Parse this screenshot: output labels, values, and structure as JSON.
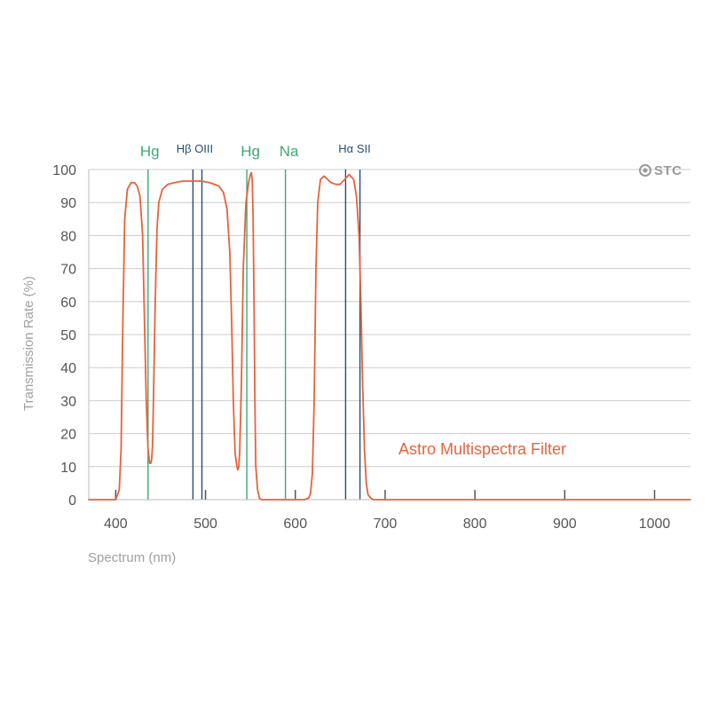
{
  "chart_data": {
    "type": "line",
    "title": "",
    "xlabel": "Spectrum (nm)",
    "ylabel": "Transmission Rate (%)",
    "xlim": [
      370,
      1040
    ],
    "ylim": [
      0,
      100
    ],
    "x_ticks": [
      400,
      500,
      600,
      700,
      800,
      900,
      1000
    ],
    "y_ticks": [
      0,
      10,
      20,
      30,
      40,
      50,
      60,
      70,
      80,
      90,
      100
    ],
    "grid": true,
    "series": [
      {
        "name": "Astro Multispectra Filter",
        "color": "#e8623c",
        "x": [
          370,
          400,
          404,
          406,
          408,
          410,
          413,
          417,
          421,
          424,
          427,
          430,
          432,
          434,
          436,
          438,
          439,
          440,
          441,
          442,
          444,
          446,
          448,
          452,
          458,
          465,
          475,
          485,
          495,
          505,
          515,
          520,
          524,
          527,
          529,
          531,
          533,
          535,
          536,
          537,
          538,
          540,
          542,
          545,
          548,
          550,
          551,
          552,
          553,
          554,
          555,
          556,
          558,
          560,
          562,
          564,
          567,
          575,
          585,
          600,
          610,
          615,
          617,
          619,
          621,
          623,
          625,
          628,
          632,
          636,
          640,
          645,
          650,
          655,
          660,
          665,
          668,
          671,
          673,
          675,
          677,
          679,
          681,
          684,
          687,
          690,
          700,
          750,
          800,
          900,
          1040
        ],
        "values": [
          0,
          0,
          3,
          15,
          55,
          85,
          94,
          96,
          96,
          95,
          92,
          80,
          55,
          30,
          15,
          11,
          11,
          12,
          16,
          30,
          60,
          82,
          90,
          94,
          95.5,
          96,
          96.5,
          96.5,
          96.5,
          96,
          95,
          93,
          88,
          75,
          55,
          30,
          14,
          10,
          9,
          10,
          14,
          35,
          70,
          90,
          96,
          98.5,
          99,
          97,
          85,
          60,
          30,
          10,
          3,
          0.5,
          0,
          0,
          0,
          0,
          0,
          0,
          0,
          0.5,
          2,
          8,
          30,
          70,
          90,
          97,
          98,
          97,
          96,
          95.5,
          95.5,
          97,
          98.5,
          97,
          92,
          80,
          60,
          35,
          15,
          5,
          1.5,
          0.5,
          0,
          0,
          0,
          0,
          0,
          0,
          0
        ]
      }
    ],
    "emission_lines": [
      {
        "label": "Hg",
        "wavelength": 436,
        "color": "#3aaa74"
      },
      {
        "label": "Hβ",
        "wavelength": 486,
        "color": "#254f75"
      },
      {
        "label": "OIII",
        "wavelength": 496,
        "color": "#254f75"
      },
      {
        "label": "Hg",
        "wavelength": 546,
        "color": "#3aaa74"
      },
      {
        "label": "Na",
        "wavelength": 589,
        "color": "#3aaa74"
      },
      {
        "label": "Hα",
        "wavelength": 656,
        "color": "#254f75"
      },
      {
        "label": "SII",
        "wavelength": 672,
        "color": "#254f75"
      }
    ],
    "annotations": {
      "filter_label": "Astro Multispectra Filter",
      "lines_group_label_1": "Hβ OIII",
      "lines_group_label_2": "Hα SII"
    },
    "brand": "STC",
    "colors": {
      "curve": "#e8623c",
      "mercury_sodium": "#3aaa74",
      "nebula": "#254f75"
    }
  }
}
